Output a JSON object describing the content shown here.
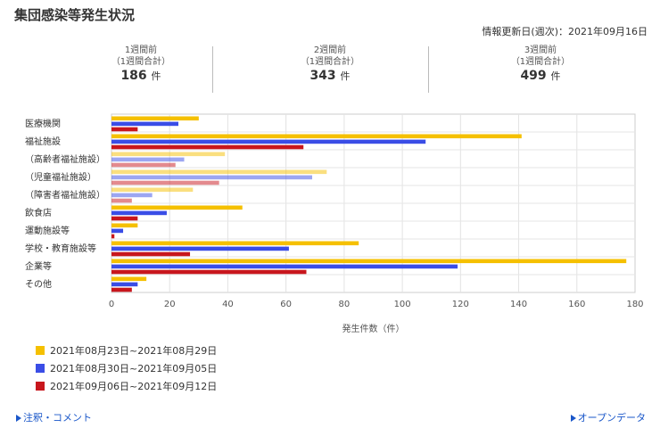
{
  "title": "集団感染等発生状況",
  "updated": "情報更新日(週次)：2021年09月16日",
  "summary": [
    {
      "label": "1週間前",
      "sub": "（1週間合計）",
      "count": "186",
      "unit": "件"
    },
    {
      "label": "2週間前",
      "sub": "（1週間合計）",
      "count": "343",
      "unit": "件"
    },
    {
      "label": "3週間前",
      "sub": "（1週間合計）",
      "count": "499",
      "unit": "件"
    }
  ],
  "chart_data": {
    "type": "bar",
    "orientation": "horizontal",
    "categories": [
      "医療機関",
      "福祉施設",
      "（高齢者福祉施設）",
      "（児童福祉施設）",
      "（障害者福祉施設）",
      "飲食店",
      "運動施設等",
      "学校・教育施設等",
      "企業等",
      "その他"
    ],
    "series": [
      {
        "name": "2021年08月23日~2021年08月29日",
        "color": "#f5c000",
        "values": [
          30,
          141,
          39,
          74,
          28,
          45,
          9,
          85,
          177,
          12
        ]
      },
      {
        "name": "2021年08月30日~2021年09月05日",
        "color": "#3a4de6",
        "values": [
          23,
          108,
          25,
          69,
          14,
          19,
          4,
          61,
          119,
          9
        ]
      },
      {
        "name": "2021年09月06日~2021年09月12日",
        "color": "#c8161d",
        "values": [
          9,
          66,
          22,
          37,
          7,
          9,
          1,
          27,
          67,
          7
        ]
      }
    ],
    "xlabel": "発生件数（件）",
    "xlim": [
      0,
      180
    ],
    "xticks": [
      0,
      20,
      40,
      60,
      80,
      100,
      120,
      140,
      160,
      180
    ],
    "grid": true,
    "legend_position": "bottom-left"
  },
  "links": {
    "notes": "注釈・コメント",
    "opendata": "オープンデータ"
  }
}
